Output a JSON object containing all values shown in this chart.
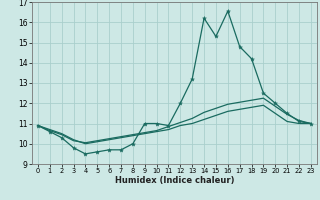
{
  "xlabel": "Humidex (Indice chaleur)",
  "ylabel": "",
  "xlim": [
    -0.5,
    23.5
  ],
  "ylim": [
    9,
    17
  ],
  "yticks": [
    9,
    10,
    11,
    12,
    13,
    14,
    15,
    16,
    17
  ],
  "xticks": [
    0,
    1,
    2,
    3,
    4,
    5,
    6,
    7,
    8,
    9,
    10,
    11,
    12,
    13,
    14,
    15,
    16,
    17,
    18,
    19,
    20,
    21,
    22,
    23
  ],
  "bg_color": "#cde8e5",
  "grid_color": "#aacfcc",
  "line_color": "#1a6b60",
  "line1_x": [
    0,
    1,
    2,
    3,
    4,
    5,
    6,
    7,
    8,
    9,
    10,
    11,
    12,
    13,
    14,
    15,
    16,
    17,
    18,
    19,
    20,
    21,
    22,
    23
  ],
  "line1_y": [
    10.9,
    10.6,
    10.3,
    9.8,
    9.5,
    9.6,
    9.7,
    9.7,
    10.0,
    11.0,
    11.0,
    10.9,
    12.0,
    13.2,
    16.2,
    15.3,
    16.55,
    14.8,
    14.2,
    12.5,
    12.0,
    11.5,
    11.1,
    11.0
  ],
  "line2_x": [
    0,
    1,
    2,
    3,
    4,
    5,
    6,
    7,
    8,
    9,
    10,
    11,
    12,
    13,
    14,
    15,
    16,
    17,
    18,
    19,
    20,
    21,
    22,
    23
  ],
  "line2_y": [
    10.9,
    10.65,
    10.45,
    10.15,
    10.05,
    10.15,
    10.25,
    10.35,
    10.45,
    10.55,
    10.65,
    10.85,
    11.05,
    11.25,
    11.55,
    11.75,
    11.95,
    12.05,
    12.15,
    12.25,
    11.85,
    11.45,
    11.15,
    11.0
  ],
  "line3_x": [
    0,
    1,
    2,
    3,
    4,
    5,
    6,
    7,
    8,
    9,
    10,
    11,
    12,
    13,
    14,
    15,
    16,
    17,
    18,
    19,
    20,
    21,
    22,
    23
  ],
  "line3_y": [
    10.9,
    10.7,
    10.5,
    10.2,
    10.0,
    10.1,
    10.2,
    10.3,
    10.4,
    10.5,
    10.6,
    10.7,
    10.9,
    11.0,
    11.2,
    11.4,
    11.6,
    11.7,
    11.8,
    11.9,
    11.5,
    11.1,
    11.0,
    11.0
  ]
}
